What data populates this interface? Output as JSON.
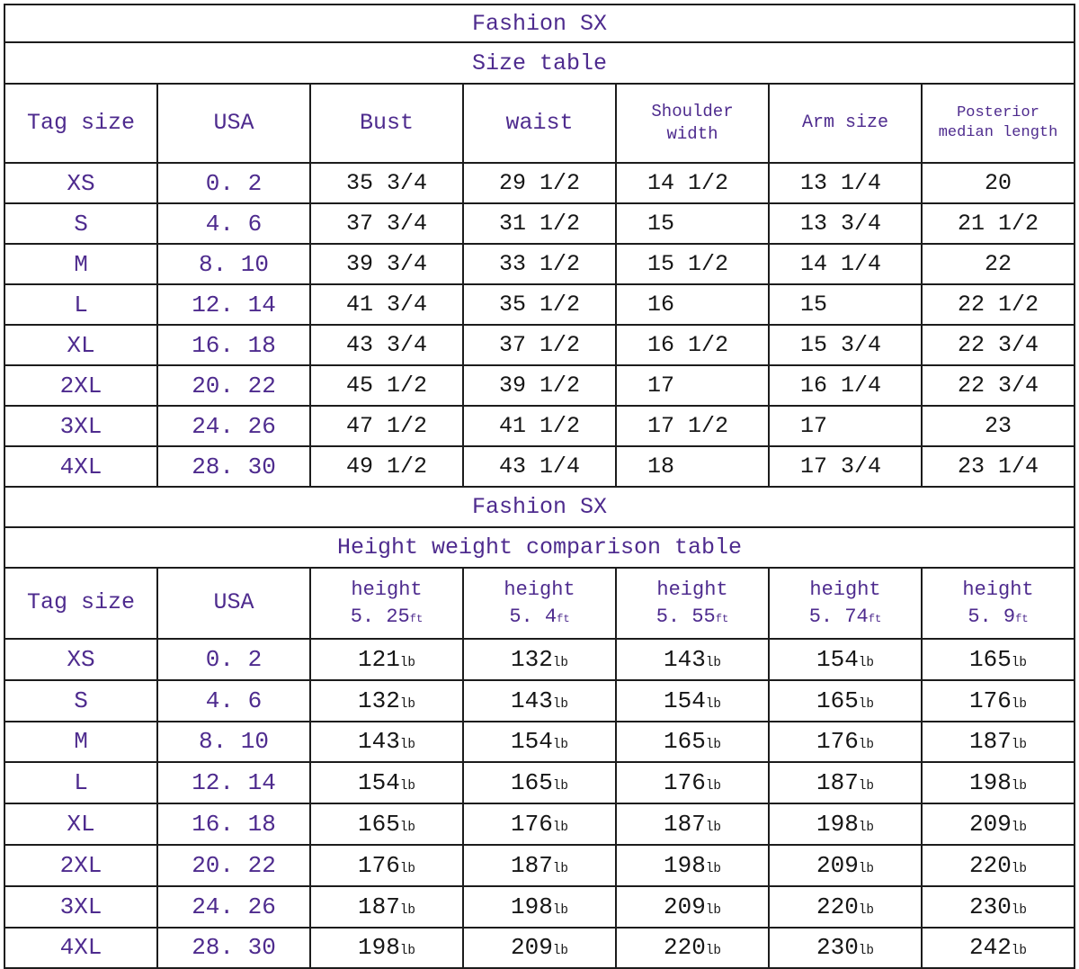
{
  "colors": {
    "accent": "#4e2b8e",
    "ink": "#161616",
    "grid": "#1c1c1c",
    "background": "#ffffff"
  },
  "size_table": {
    "title": "Fashion SX",
    "subtitle": "Size table",
    "columns": [
      {
        "label": "Tag size",
        "size": "lg"
      },
      {
        "label": "USA",
        "size": "lg"
      },
      {
        "label": "Bust",
        "size": "lg"
      },
      {
        "label": "waist",
        "size": "lg"
      },
      {
        "label": "Shoulder\nwidth",
        "size": "sm"
      },
      {
        "label": "Arm size",
        "size": "md"
      },
      {
        "label": "Posterior\nmedian length",
        "size": "xs"
      }
    ],
    "rows": [
      [
        "XS",
        "0. 2",
        "35 3/4",
        "29 1/2",
        "14 1/2",
        "13 1/4",
        "20"
      ],
      [
        "S",
        "4. 6",
        "37 3/4",
        "31 1/2",
        "15",
        "13 3/4",
        "21 1/2"
      ],
      [
        "M",
        "8. 10",
        "39 3/4",
        "33 1/2",
        "15 1/2",
        "14 1/4",
        "22"
      ],
      [
        "L",
        "12. 14",
        "41 3/4",
        "35 1/2",
        "16",
        "15",
        "22 1/2"
      ],
      [
        "XL",
        "16. 18",
        "43 3/4",
        "37 1/2",
        "16 1/2",
        "15 3/4",
        "22 3/4"
      ],
      [
        "2XL",
        "20. 22",
        "45 1/2",
        "39 1/2",
        "17",
        "16 1/4",
        "22 3/4"
      ],
      [
        "3XL",
        "24. 26",
        "47 1/2",
        "41 1/2",
        "17 1/2",
        "17",
        "23"
      ],
      [
        "4XL",
        "28. 30",
        "49 1/2",
        "43 1/4",
        "18",
        "17 3/4",
        "23 1/4"
      ]
    ]
  },
  "height_weight_table": {
    "title": "Fashion SX",
    "subtitle": "Height weight comparison table",
    "tag_column_label": "Tag size",
    "usa_column_label": "USA",
    "height_label": "height",
    "height_unit": "ft",
    "heights": [
      "5. 25",
      "5. 4",
      "5. 55",
      "5. 74",
      "5. 9"
    ],
    "weight_unit": "lb",
    "rows": [
      [
        "XS",
        "0. 2",
        "121",
        "132",
        "143",
        "154",
        "165"
      ],
      [
        "S",
        "4. 6",
        "132",
        "143",
        "154",
        "165",
        "176"
      ],
      [
        "M",
        "8. 10",
        "143",
        "154",
        "165",
        "176",
        "187"
      ],
      [
        "L",
        "12. 14",
        "154",
        "165",
        "176",
        "187",
        "198"
      ],
      [
        "XL",
        "16. 18",
        "165",
        "176",
        "187",
        "198",
        "209"
      ],
      [
        "2XL",
        "20. 22",
        "176",
        "187",
        "198",
        "209",
        "220"
      ],
      [
        "3XL",
        "24. 26",
        "187",
        "198",
        "209",
        "220",
        "230"
      ],
      [
        "4XL",
        "28. 30",
        "198",
        "209",
        "220",
        "230",
        "242"
      ]
    ]
  }
}
